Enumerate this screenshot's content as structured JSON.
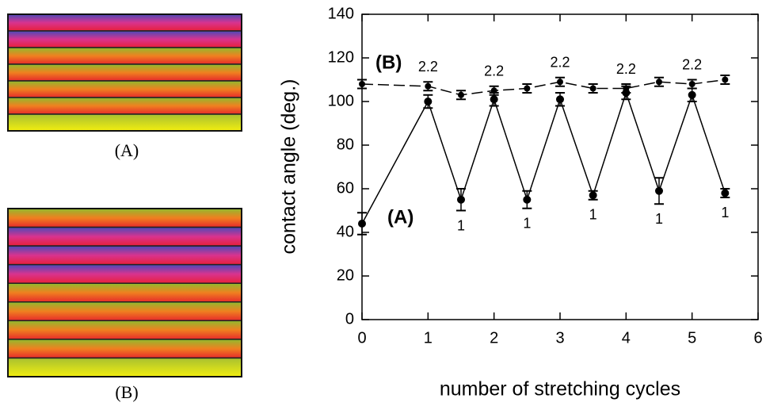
{
  "panels": [
    {
      "label": "(A)"
    },
    {
      "label": "(B)"
    }
  ],
  "chart_data": {
    "type": "line",
    "xlabel": "number of stretching cycles",
    "ylabel": "contact angle (deg.)",
    "xlim": [
      0,
      6
    ],
    "xticks": [
      0,
      1,
      2,
      3,
      4,
      5,
      6
    ],
    "ylim": [
      0,
      140
    ],
    "yticks": [
      0,
      20,
      40,
      60,
      80,
      100,
      120,
      140
    ],
    "series": [
      {
        "name": "(A)",
        "color": "#000000",
        "dash": false,
        "x": [
          0,
          1,
          1.5,
          2,
          2.5,
          3,
          3.5,
          4,
          4.5,
          5,
          5.5
        ],
        "values": [
          44,
          100,
          55,
          101,
          55,
          101,
          57,
          104,
          59,
          103,
          58
        ],
        "errors": [
          5,
          3,
          5,
          3,
          4,
          3,
          2,
          3,
          6,
          3,
          2
        ],
        "point_labels": [
          null,
          null,
          "1",
          null,
          "1",
          null,
          "1",
          null,
          "1",
          null,
          "1"
        ]
      },
      {
        "name": "(B)",
        "color": "#000000",
        "dash": true,
        "x": [
          0,
          1,
          1.5,
          2,
          2.5,
          3,
          3.5,
          4,
          4.5,
          5,
          5.5
        ],
        "values": [
          108,
          107,
          103,
          105,
          106,
          109,
          106,
          106,
          109,
          108,
          110
        ],
        "errors": [
          2,
          2,
          2,
          2,
          2,
          2,
          2,
          2,
          2,
          2,
          2
        ],
        "point_labels": [
          null,
          "2.2",
          null,
          "2.2",
          null,
          "2.2",
          null,
          "2.2",
          null,
          "2.2",
          null
        ]
      }
    ]
  }
}
